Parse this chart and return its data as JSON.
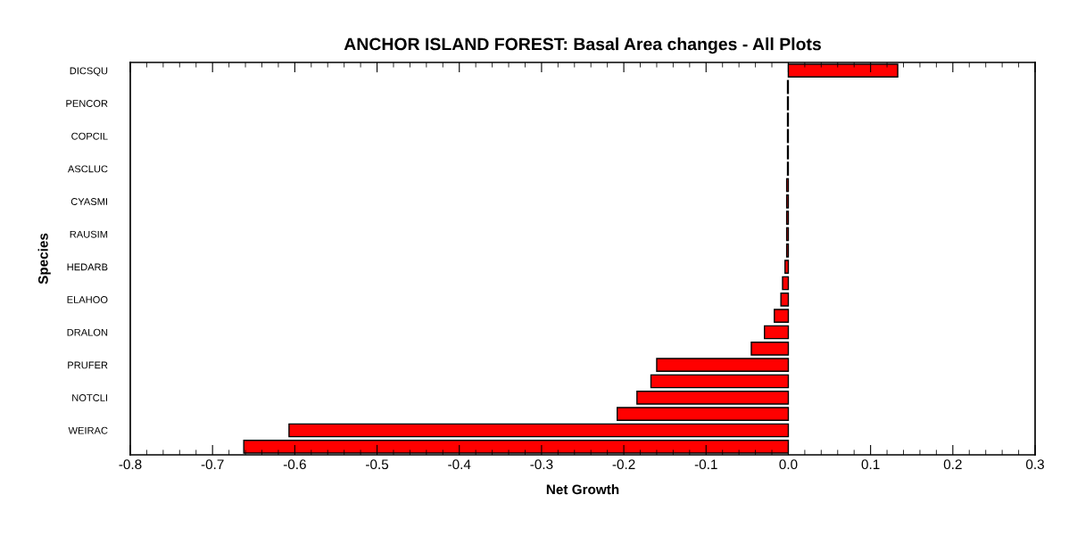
{
  "chart_data": {
    "type": "bar",
    "orientation": "horizontal",
    "title": "ANCHOR ISLAND FOREST: Basal Area changes - All Plots",
    "xlabel": "Net Growth",
    "ylabel": "Species",
    "categories": [
      "DICSQU",
      null,
      "PENCOR",
      null,
      "COPCIL",
      null,
      "ASCLUC",
      null,
      "CYASMI",
      null,
      "RAUSIM",
      null,
      "HEDARB",
      null,
      "ELAHOO",
      null,
      "DRALON",
      null,
      "PRUFER",
      null,
      "NOTCLI",
      null,
      "WEIRAC",
      null
    ],
    "values": [
      0.133,
      -0.001,
      -0.001,
      -0.001,
      -0.001,
      -0.001,
      -0.001,
      -0.002,
      -0.002,
      -0.002,
      -0.002,
      -0.002,
      -0.004,
      -0.007,
      -0.009,
      -0.017,
      -0.029,
      -0.045,
      -0.16,
      -0.167,
      -0.184,
      -0.208,
      -0.607,
      -0.662
    ],
    "color": "#ff0000",
    "xlim": [
      -0.8,
      0.3
    ],
    "xticks": [
      {
        "value": -0.8,
        "label": "-0.8"
      },
      {
        "value": -0.7,
        "label": "-0.7"
      },
      {
        "value": -0.6,
        "label": "-0.6"
      },
      {
        "value": -0.5,
        "label": "-0.5"
      },
      {
        "value": -0.4,
        "label": "-0.4"
      },
      {
        "value": -0.3,
        "label": "-0.3"
      },
      {
        "value": -0.2,
        "label": "-0.2"
      },
      {
        "value": -0.1,
        "label": "-0.1"
      },
      {
        "value": 0.0,
        "label": "0.0"
      },
      {
        "value": 0.1,
        "label": "0.1"
      },
      {
        "value": 0.2,
        "label": "0.2"
      },
      {
        "value": 0.3,
        "label": "0.3"
      }
    ],
    "grid": false,
    "legend": false
  }
}
